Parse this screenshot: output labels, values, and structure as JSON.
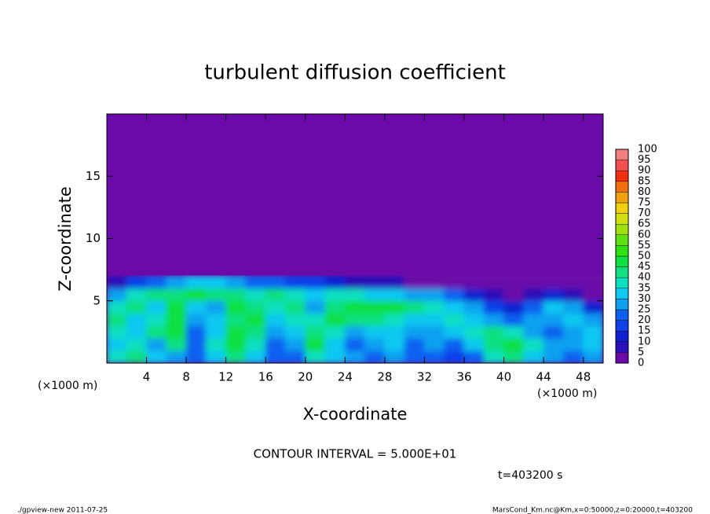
{
  "chart_data": {
    "type": "contour",
    "title": "turbulent diffusion coefficient",
    "xlabel": "X-coordinate",
    "ylabel": "Z-coordinate",
    "x_units": "(×1000 m)",
    "x_units_right": "(×1000 m)",
    "contour_interval": "CONTOUR INTERVAL = 5.000E+01",
    "time_label": "t=403200 s",
    "footer_left": "./gpview-new  2011-07-25",
    "footer_right": "MarsCond_Km.nc@Km,x=0:50000,z=0:20000,t=403200",
    "xlim": [
      0,
      50
    ],
    "ylim": [
      0,
      20
    ],
    "xticks": [
      4,
      8,
      12,
      16,
      20,
      24,
      28,
      32,
      36,
      40,
      44,
      48
    ],
    "yticks": [
      5,
      10,
      15
    ],
    "x": [
      1,
      3,
      5,
      7,
      9,
      11,
      13,
      15,
      17,
      19,
      21,
      23,
      25,
      27,
      29,
      31,
      33,
      35,
      37,
      39,
      41,
      43,
      45,
      47,
      49
    ],
    "z": [
      0.5,
      1.5,
      2.5,
      3.5,
      4.5,
      5.5,
      6.5
    ],
    "values": [
      [
        35,
        40,
        30,
        25,
        20,
        30,
        40,
        30,
        20,
        20,
        35,
        30,
        25,
        20,
        25,
        20,
        20,
        15,
        20,
        35,
        40,
        30,
        25,
        20,
        25
      ],
      [
        30,
        35,
        25,
        40,
        20,
        35,
        45,
        35,
        20,
        25,
        45,
        30,
        20,
        25,
        30,
        20,
        25,
        20,
        30,
        40,
        45,
        35,
        25,
        25,
        30
      ],
      [
        35,
        30,
        40,
        45,
        20,
        30,
        45,
        40,
        25,
        30,
        40,
        35,
        25,
        30,
        30,
        25,
        25,
        30,
        35,
        40,
        35,
        25,
        20,
        25,
        30
      ],
      [
        40,
        30,
        35,
        45,
        25,
        30,
        40,
        45,
        30,
        35,
        35,
        45,
        40,
        40,
        35,
        30,
        30,
        35,
        30,
        25,
        20,
        25,
        25,
        30,
        25
      ],
      [
        35,
        40,
        30,
        45,
        30,
        25,
        45,
        40,
        35,
        40,
        25,
        40,
        45,
        45,
        45,
        40,
        35,
        30,
        25,
        15,
        10,
        20,
        30,
        25,
        10
      ],
      [
        25,
        35,
        40,
        40,
        45,
        40,
        40,
        35,
        40,
        35,
        30,
        35,
        35,
        30,
        30,
        25,
        25,
        20,
        10,
        5,
        0,
        5,
        10,
        5,
        0
      ],
      [
        5,
        15,
        20,
        25,
        30,
        30,
        25,
        20,
        20,
        15,
        15,
        10,
        5,
        5,
        5,
        0,
        0,
        0,
        0,
        0,
        0,
        0,
        0,
        0,
        0
      ]
    ],
    "colorbar": {
      "levels": [
        0,
        5,
        10,
        15,
        20,
        25,
        30,
        35,
        40,
        45,
        50,
        55,
        60,
        65,
        70,
        75,
        80,
        85,
        90,
        95,
        100
      ],
      "colors": [
        "#6a0aa8",
        "#2a10b8",
        "#1020d0",
        "#1040e8",
        "#1060f0",
        "#10a0f0",
        "#10c8f0",
        "#10e0c0",
        "#10e080",
        "#10e040",
        "#30e010",
        "#60e010",
        "#a0e010",
        "#d0e010",
        "#f0d010",
        "#f0a010",
        "#f07010",
        "#f03010",
        "#f05050",
        "#f08080"
      ]
    }
  }
}
